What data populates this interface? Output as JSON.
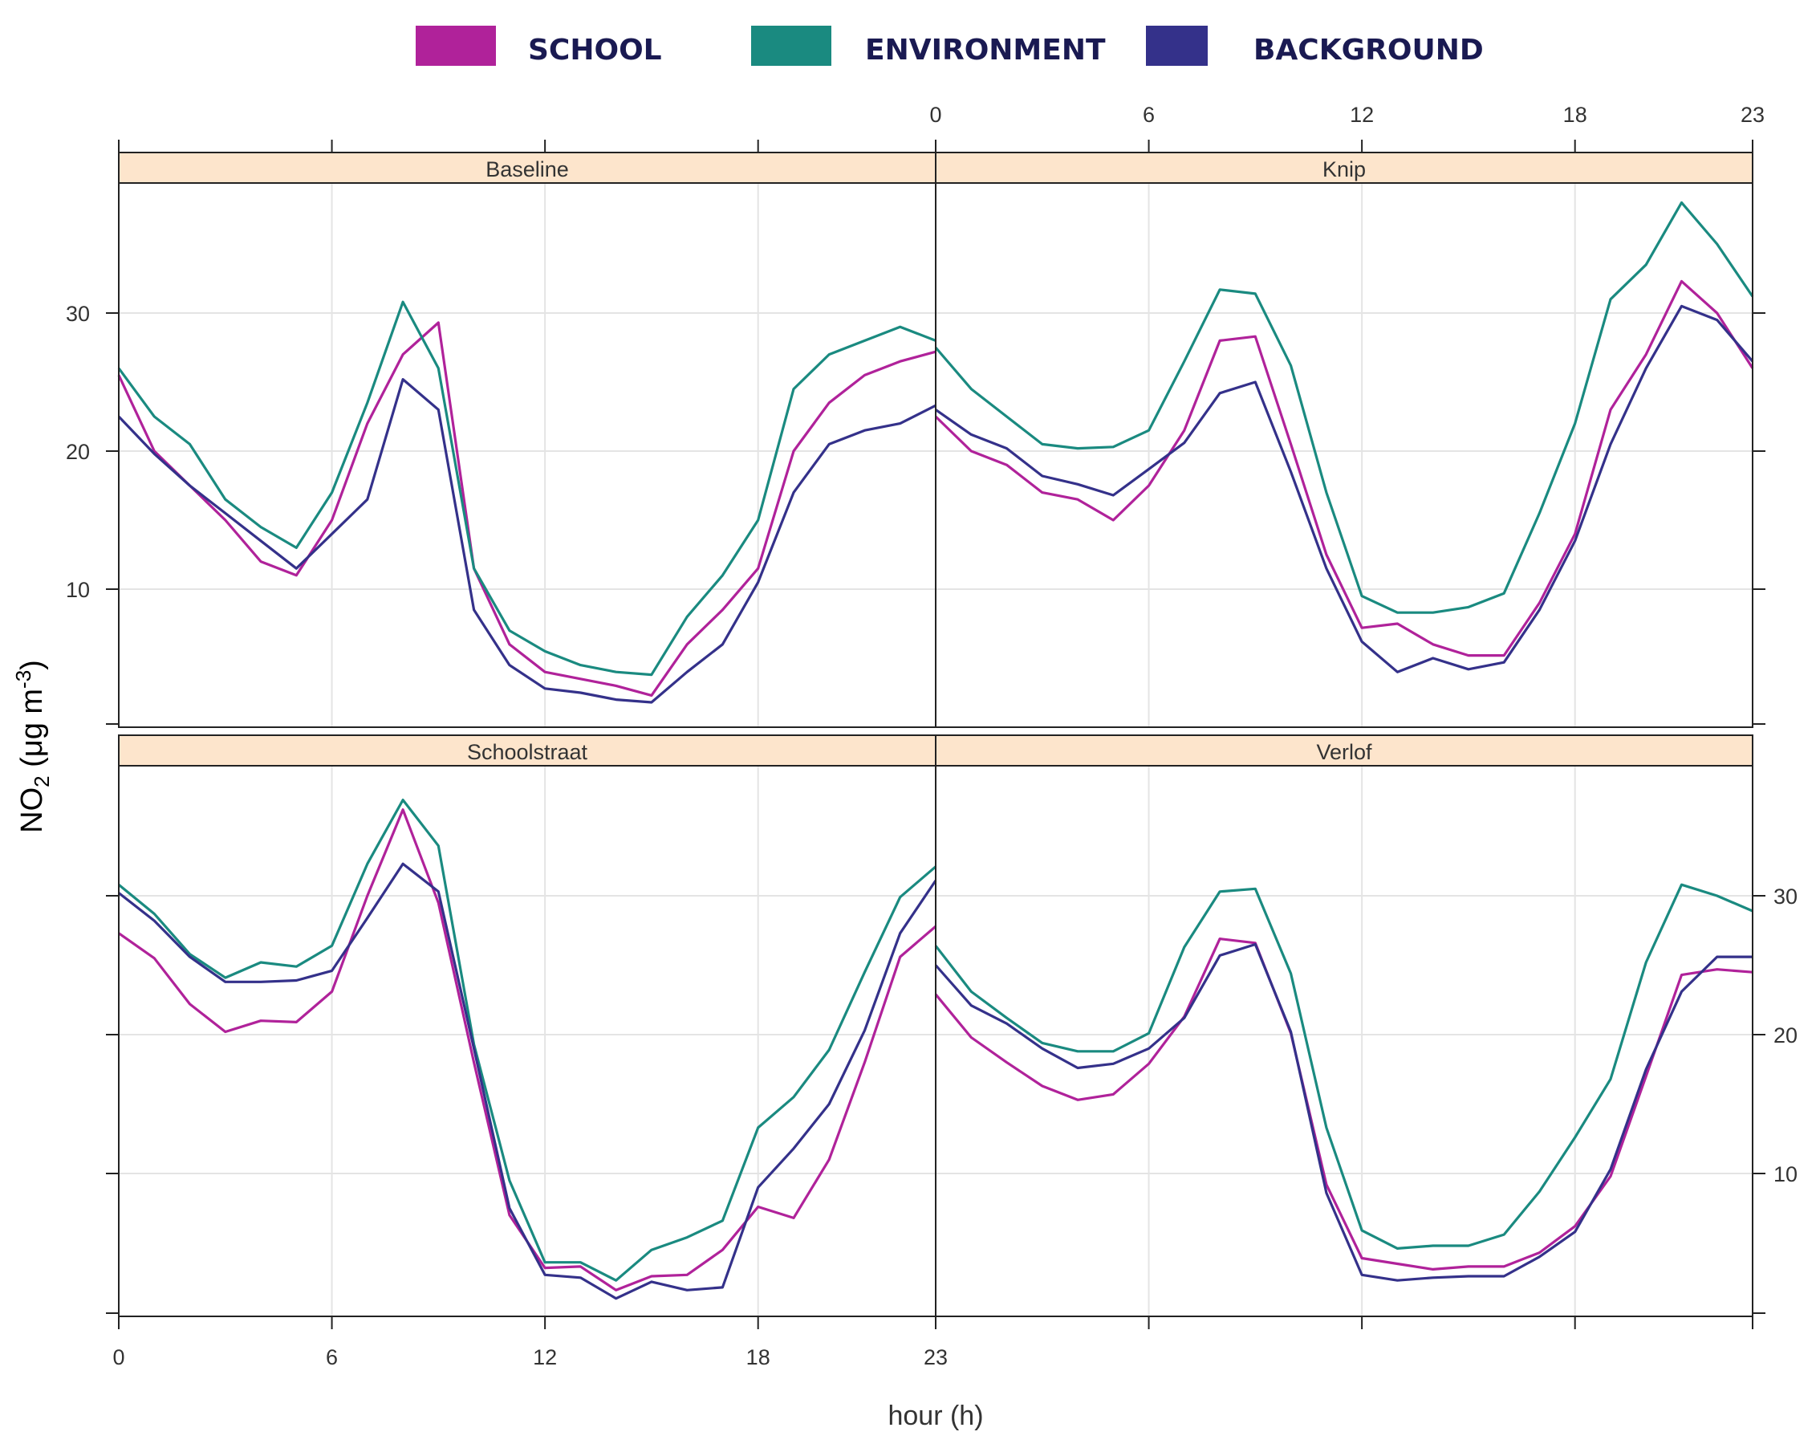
{
  "chart_data": {
    "type": "line",
    "xlabel": "hour (h)",
    "ylabel_main": "NO",
    "ylabel_sub": "2",
    "ylabel_units_pre": " (μg m",
    "ylabel_units_sup": "-3",
    "ylabel_units_post": ")",
    "xlim": [
      0,
      23
    ],
    "ylim": [
      0,
      40
    ],
    "x_ticks": [
      0,
      6,
      12,
      18,
      23
    ],
    "y_ticks": [
      10,
      20,
      30
    ],
    "grid": true,
    "colors": {
      "SCHOOL": "#b0229a",
      "ENVIRONMENT": "#1a8a80",
      "BACKGROUND": "#34318a",
      "strip": "#fde5cc",
      "grid": "#e4e4e4"
    },
    "legend": [
      "SCHOOL",
      "ENVIRONMENT",
      "BACKGROUND"
    ],
    "panels": [
      {
        "title": "Baseline",
        "series": [
          {
            "name": "SCHOOL",
            "values": [
              25.5,
              20,
              17.5,
              15,
              12,
              11,
              15,
              22,
              27,
              29.3,
              11.5,
              6,
              4,
              3.5,
              3,
              2.3,
              6,
              8.5,
              11.5,
              20,
              23.5,
              25.5,
              26.5,
              27.2
            ]
          },
          {
            "name": "ENVIRONMENT",
            "values": [
              26,
              22.5,
              20.5,
              16.5,
              14.5,
              13,
              17,
              23.5,
              30.8,
              26,
              11.5,
              7,
              5.5,
              4.5,
              4,
              3.8,
              8,
              11,
              15,
              24.5,
              27,
              28,
              29,
              28
            ]
          },
          {
            "name": "BACKGROUND",
            "values": [
              22.5,
              19.8,
              17.5,
              15.5,
              13.5,
              11.5,
              14,
              16.5,
              25.2,
              23,
              8.5,
              4.5,
              2.8,
              2.5,
              2,
              1.8,
              4,
              6,
              10.5,
              17,
              20.5,
              21.5,
              22,
              23.3
            ]
          }
        ]
      },
      {
        "title": "Knip",
        "series": [
          {
            "name": "SCHOOL",
            "values": [
              22.5,
              20,
              19,
              17,
              16.5,
              15,
              17.5,
              21.5,
              28,
              28.3,
              20.5,
              12.5,
              7.2,
              7.5,
              6,
              5.2,
              5.2,
              9,
              14,
              23,
              27,
              32.3,
              30,
              26
            ]
          },
          {
            "name": "ENVIRONMENT",
            "values": [
              27.5,
              24.5,
              22.5,
              20.5,
              20.2,
              20.3,
              21.5,
              26.5,
              31.7,
              31.4,
              26.2,
              17,
              9.5,
              8.3,
              8.3,
              8.7,
              9.7,
              15.5,
              22,
              31,
              33.5,
              38,
              35,
              31.2
            ]
          },
          {
            "name": "BACKGROUND",
            "values": [
              23,
              21.2,
              20.2,
              18.2,
              17.6,
              16.8,
              18.7,
              20.6,
              24.2,
              25,
              18.5,
              11.5,
              6.2,
              4,
              5,
              4.2,
              4.7,
              8.5,
              13.5,
              20.5,
              26,
              30.5,
              29.5,
              26.5
            ]
          }
        ]
      },
      {
        "title": "Schoolstraat",
        "series": [
          {
            "name": "SCHOOL",
            "values": [
              27.3,
              25.5,
              22.2,
              20.2,
              21,
              20.9,
              23.1,
              30,
              36.2,
              29.5,
              18,
              7,
              3.2,
              3.3,
              1.6,
              2.6,
              2.7,
              4.5,
              7.6,
              6.8,
              11,
              18,
              25.6,
              27.8
            ]
          },
          {
            "name": "ENVIRONMENT",
            "values": [
              30.8,
              28.7,
              25.8,
              24.1,
              25.2,
              24.9,
              26.4,
              32.3,
              36.9,
              33.6,
              19.3,
              9.5,
              3.6,
              3.6,
              2.3,
              4.5,
              5.4,
              6.6,
              13.3,
              15.5,
              18.9,
              24.5,
              29.9,
              32.1
            ]
          },
          {
            "name": "BACKGROUND",
            "values": [
              30.2,
              28.2,
              25.6,
              23.8,
              23.8,
              23.9,
              24.6,
              28.4,
              32.3,
              30.3,
              19,
              7.5,
              2.7,
              2.5,
              1,
              2.2,
              1.6,
              1.8,
              9,
              11.8,
              15,
              20.3,
              27.3,
              31.1
            ]
          }
        ]
      },
      {
        "title": "Verlof",
        "series": [
          {
            "name": "SCHOOL",
            "values": [
              22.9,
              19.8,
              18,
              16.3,
              15.3,
              15.7,
              17.9,
              21.3,
              26.9,
              26.6,
              20.1,
              9.2,
              3.9,
              3.5,
              3.1,
              3.3,
              3.3,
              4.3,
              6.2,
              9.8,
              17,
              24.3,
              24.7,
              24.5
            ]
          },
          {
            "name": "ENVIRONMENT",
            "values": [
              26.4,
              23.1,
              21.2,
              19.4,
              18.8,
              18.8,
              20.1,
              26.3,
              30.3,
              30.5,
              24.4,
              13.3,
              5.9,
              4.6,
              4.8,
              4.8,
              5.6,
              8.7,
              12.6,
              16.8,
              25.2,
              30.8,
              30,
              28.9
            ]
          },
          {
            "name": "BACKGROUND",
            "values": [
              25,
              22.1,
              20.8,
              19,
              17.6,
              17.9,
              19,
              21.2,
              25.7,
              26.5,
              20.2,
              8.6,
              2.7,
              2.3,
              2.5,
              2.6,
              2.6,
              4,
              5.8,
              10.3,
              17.5,
              23.1,
              25.6,
              25.6
            ]
          }
        ]
      }
    ]
  }
}
